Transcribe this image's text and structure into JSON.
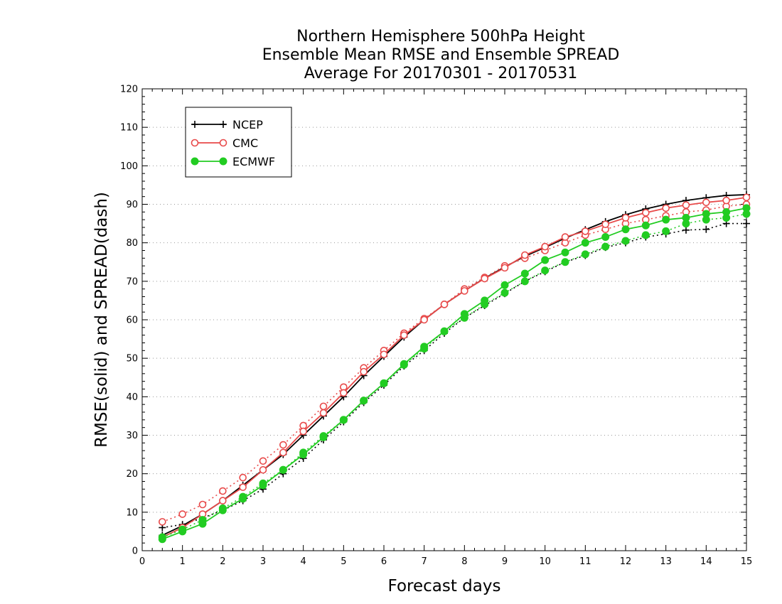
{
  "chart_data": {
    "type": "line",
    "title_lines": [
      "Northern Hemisphere 500hPa Height",
      "Ensemble Mean RMSE and Ensemble SPREAD",
      "Average For 20170301 - 20170531"
    ],
    "xlabel": "Forecast days",
    "ylabel": "RMSE(solid) and SPREAD(dash)",
    "xlim": [
      0,
      15
    ],
    "ylim": [
      0,
      120
    ],
    "xticks": [
      0,
      1,
      2,
      3,
      4,
      5,
      6,
      7,
      8,
      9,
      10,
      11,
      12,
      13,
      14,
      15
    ],
    "yticks": [
      0,
      10,
      20,
      30,
      40,
      50,
      60,
      70,
      80,
      90,
      100,
      110,
      120
    ],
    "grid": true,
    "legend_position": "top-left",
    "x": [
      0.5,
      1,
      1.5,
      2,
      2.5,
      3,
      3.5,
      4,
      4.5,
      5,
      5.5,
      6,
      6.5,
      7,
      7.5,
      8,
      8.5,
      9,
      9.5,
      10,
      10.5,
      11,
      11.5,
      12,
      12.5,
      13,
      13.5,
      14,
      14.5,
      15
    ],
    "series": [
      {
        "name": "NCEP",
        "color": "#000000",
        "marker": "plus",
        "rmse": [
          4.0,
          6.5,
          9.5,
          13.0,
          17.0,
          21.0,
          25.0,
          30.0,
          35.0,
          40.0,
          45.5,
          50.5,
          55.5,
          60.0,
          64.0,
          67.5,
          70.8,
          73.7,
          76.5,
          78.8,
          81.2,
          83.4,
          85.5,
          87.3,
          88.8,
          90.0,
          91.0,
          91.7,
          92.3,
          92.5
        ],
        "spread": [
          6.0,
          6.8,
          8.5,
          10.5,
          13.0,
          16.0,
          20.0,
          24.0,
          28.8,
          33.5,
          38.5,
          43.0,
          48.0,
          52.0,
          56.5,
          60.5,
          63.7,
          66.8,
          70.0,
          72.5,
          75.0,
          76.7,
          78.8,
          80.0,
          81.5,
          82.3,
          83.3,
          83.5,
          85.0,
          85.0
        ]
      },
      {
        "name": "CMC",
        "color": "#e84a4a",
        "marker": "open-circle",
        "rmse": [
          3.5,
          6.0,
          9.5,
          13.0,
          16.5,
          21.0,
          25.5,
          31.0,
          35.8,
          41.0,
          46.5,
          51.0,
          56.0,
          60.0,
          64.0,
          67.5,
          70.7,
          73.5,
          76.8,
          79.0,
          81.5,
          83.0,
          84.8,
          86.5,
          87.8,
          89.0,
          89.8,
          90.5,
          91.0,
          91.8
        ],
        "spread": [
          7.5,
          9.5,
          12.0,
          15.5,
          19.0,
          23.3,
          27.5,
          32.5,
          37.5,
          42.5,
          47.5,
          52.0,
          56.5,
          60.3,
          64.0,
          68.0,
          71.0,
          74.0,
          76.0,
          78.0,
          80.0,
          82.0,
          83.5,
          85.0,
          86.0,
          87.0,
          88.0,
          88.5,
          89.5,
          90.0
        ]
      },
      {
        "name": "ECMWF",
        "color": "#22cc22",
        "marker": "filled-circle",
        "rmse": [
          3.0,
          5.0,
          7.0,
          10.5,
          13.5,
          17.0,
          21.0,
          25.0,
          29.5,
          34.0,
          39.0,
          43.5,
          48.5,
          53.0,
          57.0,
          61.5,
          65.0,
          69.0,
          72.0,
          75.5,
          77.5,
          80.0,
          81.5,
          83.5,
          84.5,
          86.0,
          86.5,
          87.5,
          88.0,
          89.0
        ],
        "spread": [
          3.5,
          5.5,
          8.0,
          11.0,
          14.0,
          17.5,
          21.0,
          25.5,
          29.8,
          34.0,
          39.0,
          43.5,
          48.3,
          52.5,
          57.0,
          60.5,
          64.0,
          67.0,
          70.0,
          72.8,
          75.0,
          77.0,
          79.0,
          80.5,
          82.0,
          83.0,
          85.0,
          86.0,
          86.5,
          87.5
        ]
      }
    ]
  }
}
